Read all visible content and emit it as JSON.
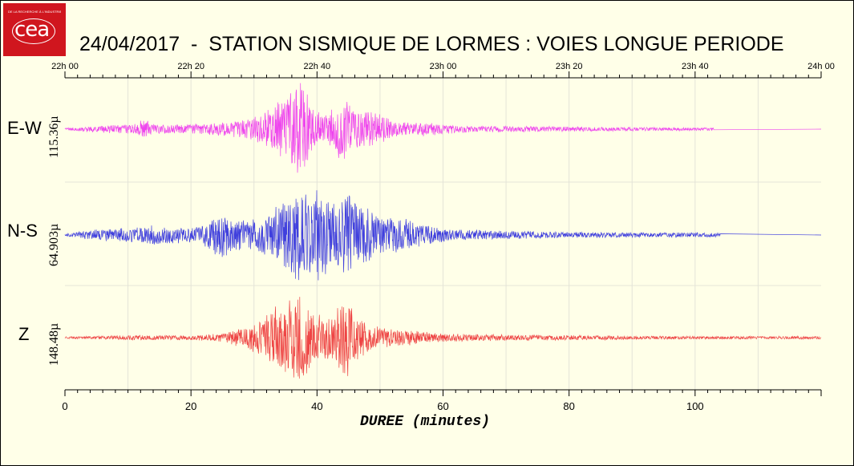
{
  "logo": {
    "text": "cea",
    "tagline": "DE LA RECHERCHE À L'INDUSTRIE"
  },
  "chart_data": {
    "type": "line",
    "title": "24/04/2017  -  STATION SISMIQUE DE LORMES : VOIES LONGUE PERIODE",
    "xlabel": "DUREE (minutes)",
    "xlim": [
      0,
      120
    ],
    "x_ticks": [
      0,
      20,
      40,
      60,
      80,
      100
    ],
    "top_axis_ticks": [
      {
        "minute": 0,
        "label": "22h 00"
      },
      {
        "minute": 20,
        "label": "22h 20"
      },
      {
        "minute": 40,
        "label": "22h 40"
      },
      {
        "minute": 60,
        "label": "23h 00"
      },
      {
        "minute": 80,
        "label": "23h 20"
      },
      {
        "minute": 100,
        "label": "23h 40"
      },
      {
        "minute": 120,
        "label": "24h 00"
      }
    ],
    "grid": true,
    "series": [
      {
        "name": "E-W",
        "scale": "115.36µ",
        "color": "#ee44ee",
        "record_end_minute": 103,
        "envelope": [
          [
            0,
            0.02
          ],
          [
            3,
            0.05
          ],
          [
            7,
            0.08
          ],
          [
            11,
            0.1
          ],
          [
            12.5,
            0.22
          ],
          [
            14,
            0.1
          ],
          [
            18,
            0.09
          ],
          [
            22,
            0.12
          ],
          [
            26,
            0.14
          ],
          [
            30,
            0.25
          ],
          [
            33,
            0.45
          ],
          [
            35,
            0.7
          ],
          [
            36,
            0.82
          ],
          [
            37,
            0.95
          ],
          [
            38,
            1.0
          ],
          [
            39,
            0.5
          ],
          [
            41,
            0.25
          ],
          [
            43,
            0.45
          ],
          [
            44,
            0.75
          ],
          [
            45,
            0.55
          ],
          [
            47,
            0.4
          ],
          [
            50,
            0.3
          ],
          [
            52,
            0.18
          ],
          [
            55,
            0.12
          ],
          [
            57,
            0.15
          ],
          [
            60,
            0.1
          ],
          [
            65,
            0.06
          ],
          [
            70,
            0.06
          ],
          [
            80,
            0.05
          ],
          [
            90,
            0.04
          ],
          [
            100,
            0.03
          ],
          [
            103,
            0.03
          ]
        ]
      },
      {
        "name": "N-S",
        "scale": "64.903µ",
        "color": "#4040dd",
        "record_end_minute": 104,
        "envelope": [
          [
            0,
            0.02
          ],
          [
            3,
            0.08
          ],
          [
            6,
            0.12
          ],
          [
            10,
            0.15
          ],
          [
            13,
            0.2
          ],
          [
            16,
            0.18
          ],
          [
            20,
            0.15
          ],
          [
            22,
            0.2
          ],
          [
            24,
            0.4
          ],
          [
            25,
            0.5
          ],
          [
            26,
            0.35
          ],
          [
            29,
            0.3
          ],
          [
            31,
            0.35
          ],
          [
            33,
            0.5
          ],
          [
            35,
            0.7
          ],
          [
            37,
            0.95
          ],
          [
            38,
            0.9
          ],
          [
            40,
            1.0
          ],
          [
            41,
            0.85
          ],
          [
            43,
            0.6
          ],
          [
            45,
            1.0
          ],
          [
            46,
            0.7
          ],
          [
            48,
            0.55
          ],
          [
            50,
            0.4
          ],
          [
            53,
            0.35
          ],
          [
            55,
            0.3
          ],
          [
            57,
            0.2
          ],
          [
            62,
            0.12
          ],
          [
            70,
            0.08
          ],
          [
            80,
            0.06
          ],
          [
            90,
            0.05
          ],
          [
            100,
            0.05
          ],
          [
            104,
            0.04
          ]
        ]
      },
      {
        "name": "Z",
        "scale": "148.48µ",
        "color": "#ee4444",
        "record_end_minute": 120,
        "envelope": [
          [
            0,
            0.02
          ],
          [
            5,
            0.03
          ],
          [
            10,
            0.05
          ],
          [
            20,
            0.05
          ],
          [
            25,
            0.08
          ],
          [
            28,
            0.2
          ],
          [
            30,
            0.3
          ],
          [
            32,
            0.5
          ],
          [
            34,
            0.7
          ],
          [
            36,
            0.85
          ],
          [
            37,
            1.0
          ],
          [
            38,
            0.95
          ],
          [
            39,
            0.6
          ],
          [
            41,
            0.4
          ],
          [
            42,
            0.5
          ],
          [
            44,
            0.7
          ],
          [
            45,
            0.85
          ],
          [
            46,
            0.55
          ],
          [
            48,
            0.3
          ],
          [
            50,
            0.2
          ],
          [
            55,
            0.15
          ],
          [
            60,
            0.08
          ],
          [
            70,
            0.06
          ],
          [
            80,
            0.05
          ],
          [
            90,
            0.04
          ],
          [
            100,
            0.03
          ],
          [
            110,
            0.03
          ],
          [
            120,
            0.03
          ]
        ]
      }
    ]
  }
}
